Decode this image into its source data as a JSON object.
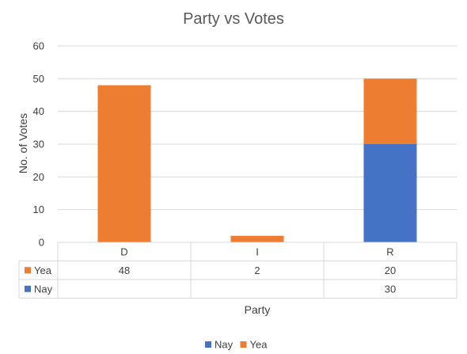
{
  "chart_data": {
    "type": "bar",
    "stacked": true,
    "title": "Party vs Votes",
    "xlabel": "Party",
    "ylabel": "No. of Votes",
    "categories": [
      "D",
      "I",
      "R"
    ],
    "ylim": [
      0,
      60
    ],
    "yticks": [
      0,
      10,
      20,
      30,
      40,
      50,
      60
    ],
    "grid": true,
    "legend_position": "bottom",
    "data_table": true,
    "series": [
      {
        "name": "Nay",
        "color": "#4472C4",
        "values": [
          null,
          null,
          30
        ]
      },
      {
        "name": "Yea",
        "color": "#ED7D31",
        "values": [
          48,
          2,
          20
        ]
      }
    ],
    "table_row_order": [
      "Yea",
      "Nay"
    ],
    "legend_order": [
      "Nay",
      "Yea"
    ]
  }
}
